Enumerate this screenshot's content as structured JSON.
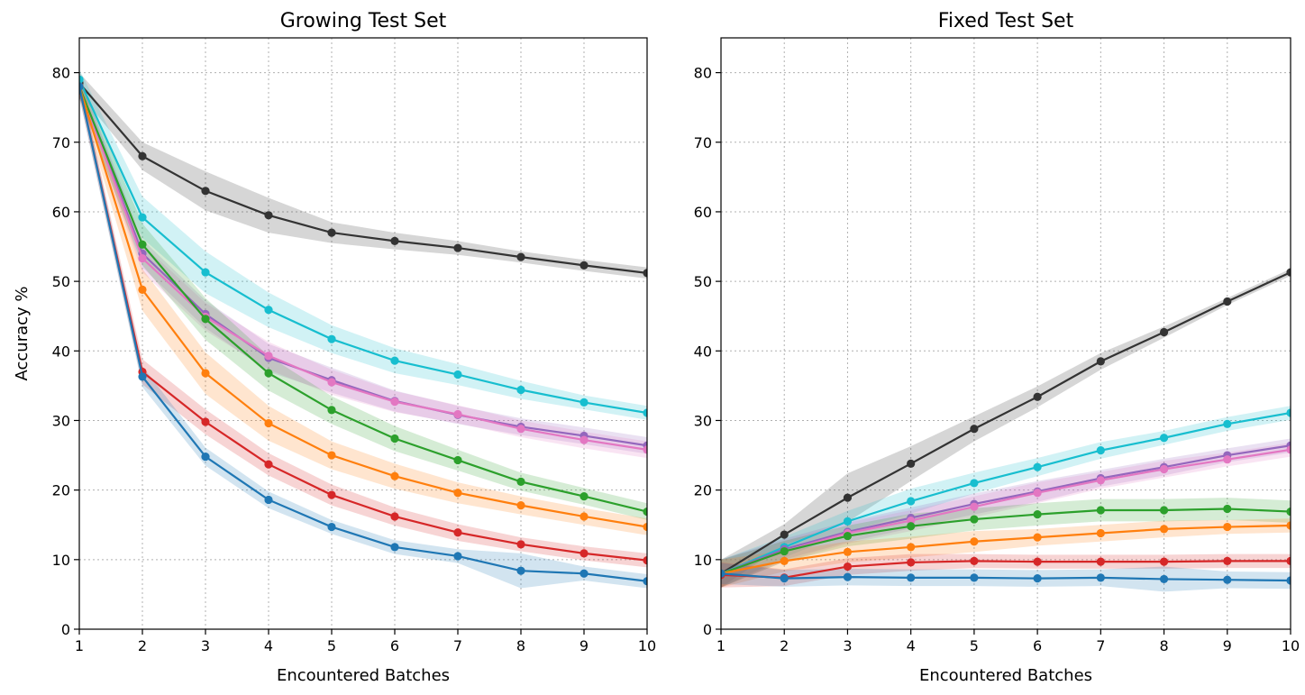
{
  "colors": {
    "black": "#333333",
    "cyan": "#17becf",
    "pink": "#e377c2",
    "purple": "#9467bd",
    "green": "#2ca02c",
    "orange": "#ff7f0e",
    "red": "#d62728",
    "blue": "#1f77b4"
  },
  "chart_data": [
    {
      "type": "line",
      "title": "Growing Test Set",
      "xlabel": "Encountered Batches",
      "ylabel": "Accuracy %",
      "xlim": [
        1,
        10
      ],
      "ylim": [
        0,
        85
      ],
      "xticks": [
        "1",
        "2",
        "3",
        "4",
        "5",
        "6",
        "7",
        "8",
        "9",
        "10"
      ],
      "yticks": [
        "0",
        "10",
        "20",
        "30",
        "40",
        "50",
        "60",
        "70",
        "80"
      ],
      "grid": true,
      "x": [
        1,
        2,
        3,
        4,
        5,
        6,
        7,
        8,
        9,
        10
      ],
      "series": [
        {
          "color": "black",
          "values": [
            78.5,
            68.0,
            63.0,
            59.5,
            57.0,
            55.8,
            54.8,
            53.5,
            52.3,
            51.2
          ],
          "band": [
            1.5,
            2.0,
            2.8,
            2.5,
            1.5,
            1.2,
            1.0,
            0.8,
            0.8,
            0.8
          ]
        },
        {
          "color": "cyan",
          "values": [
            79.0,
            59.2,
            51.3,
            45.9,
            41.7,
            38.6,
            36.6,
            34.4,
            32.6,
            31.1
          ],
          "band": [
            1.5,
            3.0,
            3.0,
            2.5,
            2.0,
            1.8,
            1.5,
            1.3,
            1.0,
            1.0
          ]
        },
        {
          "color": "purple",
          "values": [
            78.0,
            54.0,
            45.3,
            39.0,
            35.8,
            32.8,
            30.8,
            29.1,
            27.8,
            26.4
          ],
          "band": [
            1.5,
            2.0,
            2.0,
            2.0,
            1.8,
            1.5,
            1.3,
            1.2,
            1.2,
            1.2
          ]
        },
        {
          "color": "pink",
          "values": [
            78.0,
            53.3,
            44.9,
            39.3,
            35.5,
            32.7,
            30.9,
            28.8,
            27.2,
            25.8
          ],
          "band": [
            1.5,
            2.0,
            2.0,
            2.0,
            1.8,
            1.5,
            1.3,
            1.2,
            1.2,
            1.2
          ]
        },
        {
          "color": "green",
          "values": [
            78.0,
            55.3,
            44.6,
            36.8,
            31.5,
            27.4,
            24.3,
            21.2,
            19.1,
            16.9
          ],
          "band": [
            1.5,
            3.0,
            3.0,
            2.5,
            2.0,
            1.8,
            1.5,
            1.3,
            1.2,
            1.2
          ]
        },
        {
          "color": "orange",
          "values": [
            78.0,
            48.8,
            36.8,
            29.6,
            25.0,
            22.0,
            19.6,
            17.8,
            16.2,
            14.7
          ],
          "band": [
            1.5,
            3.0,
            3.0,
            2.5,
            2.0,
            1.8,
            1.5,
            1.3,
            1.2,
            1.2
          ]
        },
        {
          "color": "red",
          "values": [
            78.0,
            37.0,
            29.8,
            23.7,
            19.3,
            16.2,
            13.9,
            12.2,
            10.9,
            9.9
          ],
          "band": [
            1.5,
            1.8,
            1.8,
            1.6,
            1.5,
            1.3,
            1.2,
            1.0,
            1.0,
            1.0
          ]
        },
        {
          "color": "blue",
          "values": [
            78.0,
            36.3,
            24.8,
            18.6,
            14.7,
            11.8,
            10.5,
            8.4,
            8.0,
            6.9
          ],
          "band": [
            1.5,
            1.5,
            1.3,
            1.2,
            1.0,
            1.0,
            1.0,
            2.5,
            1.0,
            1.0
          ]
        }
      ]
    },
    {
      "type": "line",
      "title": "Fixed Test Set",
      "xlabel": "Encountered Batches",
      "ylabel": "",
      "xlim": [
        1,
        10
      ],
      "ylim": [
        0,
        85
      ],
      "xticks": [
        "1",
        "2",
        "3",
        "4",
        "5",
        "6",
        "7",
        "8",
        "9",
        "10"
      ],
      "yticks": [
        "0",
        "10",
        "20",
        "30",
        "40",
        "50",
        "60",
        "70",
        "80"
      ],
      "grid": true,
      "x": [
        1,
        2,
        3,
        4,
        5,
        6,
        7,
        8,
        9,
        10
      ],
      "series": [
        {
          "color": "black",
          "values": [
            8.0,
            13.6,
            18.9,
            23.8,
            28.8,
            33.4,
            38.5,
            42.7,
            47.1,
            51.3
          ],
          "band": [
            2.0,
            1.5,
            3.5,
            2.5,
            1.8,
            1.5,
            1.2,
            0.8,
            0.5,
            0.5
          ]
        },
        {
          "color": "cyan",
          "values": [
            8.0,
            11.8,
            15.5,
            18.4,
            21.0,
            23.3,
            25.7,
            27.5,
            29.5,
            31.1
          ],
          "band": [
            2.0,
            1.5,
            1.5,
            1.8,
            1.5,
            1.3,
            1.2,
            1.0,
            1.0,
            1.0
          ]
        },
        {
          "color": "purple",
          "values": [
            8.0,
            11.5,
            14.0,
            16.0,
            18.0,
            19.8,
            21.7,
            23.3,
            25.0,
            26.4
          ],
          "band": [
            2.0,
            1.5,
            1.5,
            1.5,
            1.5,
            1.5,
            1.2,
            1.2,
            1.0,
            1.0
          ]
        },
        {
          "color": "pink",
          "values": [
            8.0,
            11.2,
            13.8,
            15.6,
            17.6,
            19.6,
            21.4,
            23.0,
            24.4,
            25.8
          ],
          "band": [
            2.0,
            1.5,
            1.5,
            1.5,
            1.5,
            1.5,
            1.2,
            1.2,
            1.0,
            1.0
          ]
        },
        {
          "color": "green",
          "values": [
            8.0,
            11.2,
            13.4,
            14.8,
            15.8,
            16.5,
            17.1,
            17.1,
            17.3,
            16.9
          ],
          "band": [
            2.0,
            1.5,
            1.5,
            1.8,
            1.6,
            1.6,
            1.6,
            1.6,
            1.6,
            1.6
          ]
        },
        {
          "color": "orange",
          "values": [
            8.0,
            9.8,
            11.1,
            11.8,
            12.6,
            13.2,
            13.8,
            14.4,
            14.7,
            14.9
          ],
          "band": [
            2.0,
            1.5,
            1.5,
            1.5,
            1.5,
            1.2,
            1.2,
            1.2,
            1.0,
            1.0
          ]
        },
        {
          "color": "red",
          "values": [
            7.8,
            7.4,
            9.0,
            9.6,
            9.8,
            9.7,
            9.7,
            9.7,
            9.8,
            9.8
          ],
          "band": [
            1.8,
            1.2,
            1.2,
            1.2,
            1.0,
            1.0,
            1.0,
            1.0,
            1.0,
            1.0
          ]
        },
        {
          "color": "blue",
          "values": [
            8.0,
            7.3,
            7.5,
            7.4,
            7.4,
            7.3,
            7.4,
            7.2,
            7.1,
            7.0
          ],
          "band": [
            1.5,
            1.2,
            1.2,
            1.2,
            1.2,
            1.2,
            1.2,
            1.8,
            1.2,
            1.2
          ]
        }
      ]
    }
  ]
}
